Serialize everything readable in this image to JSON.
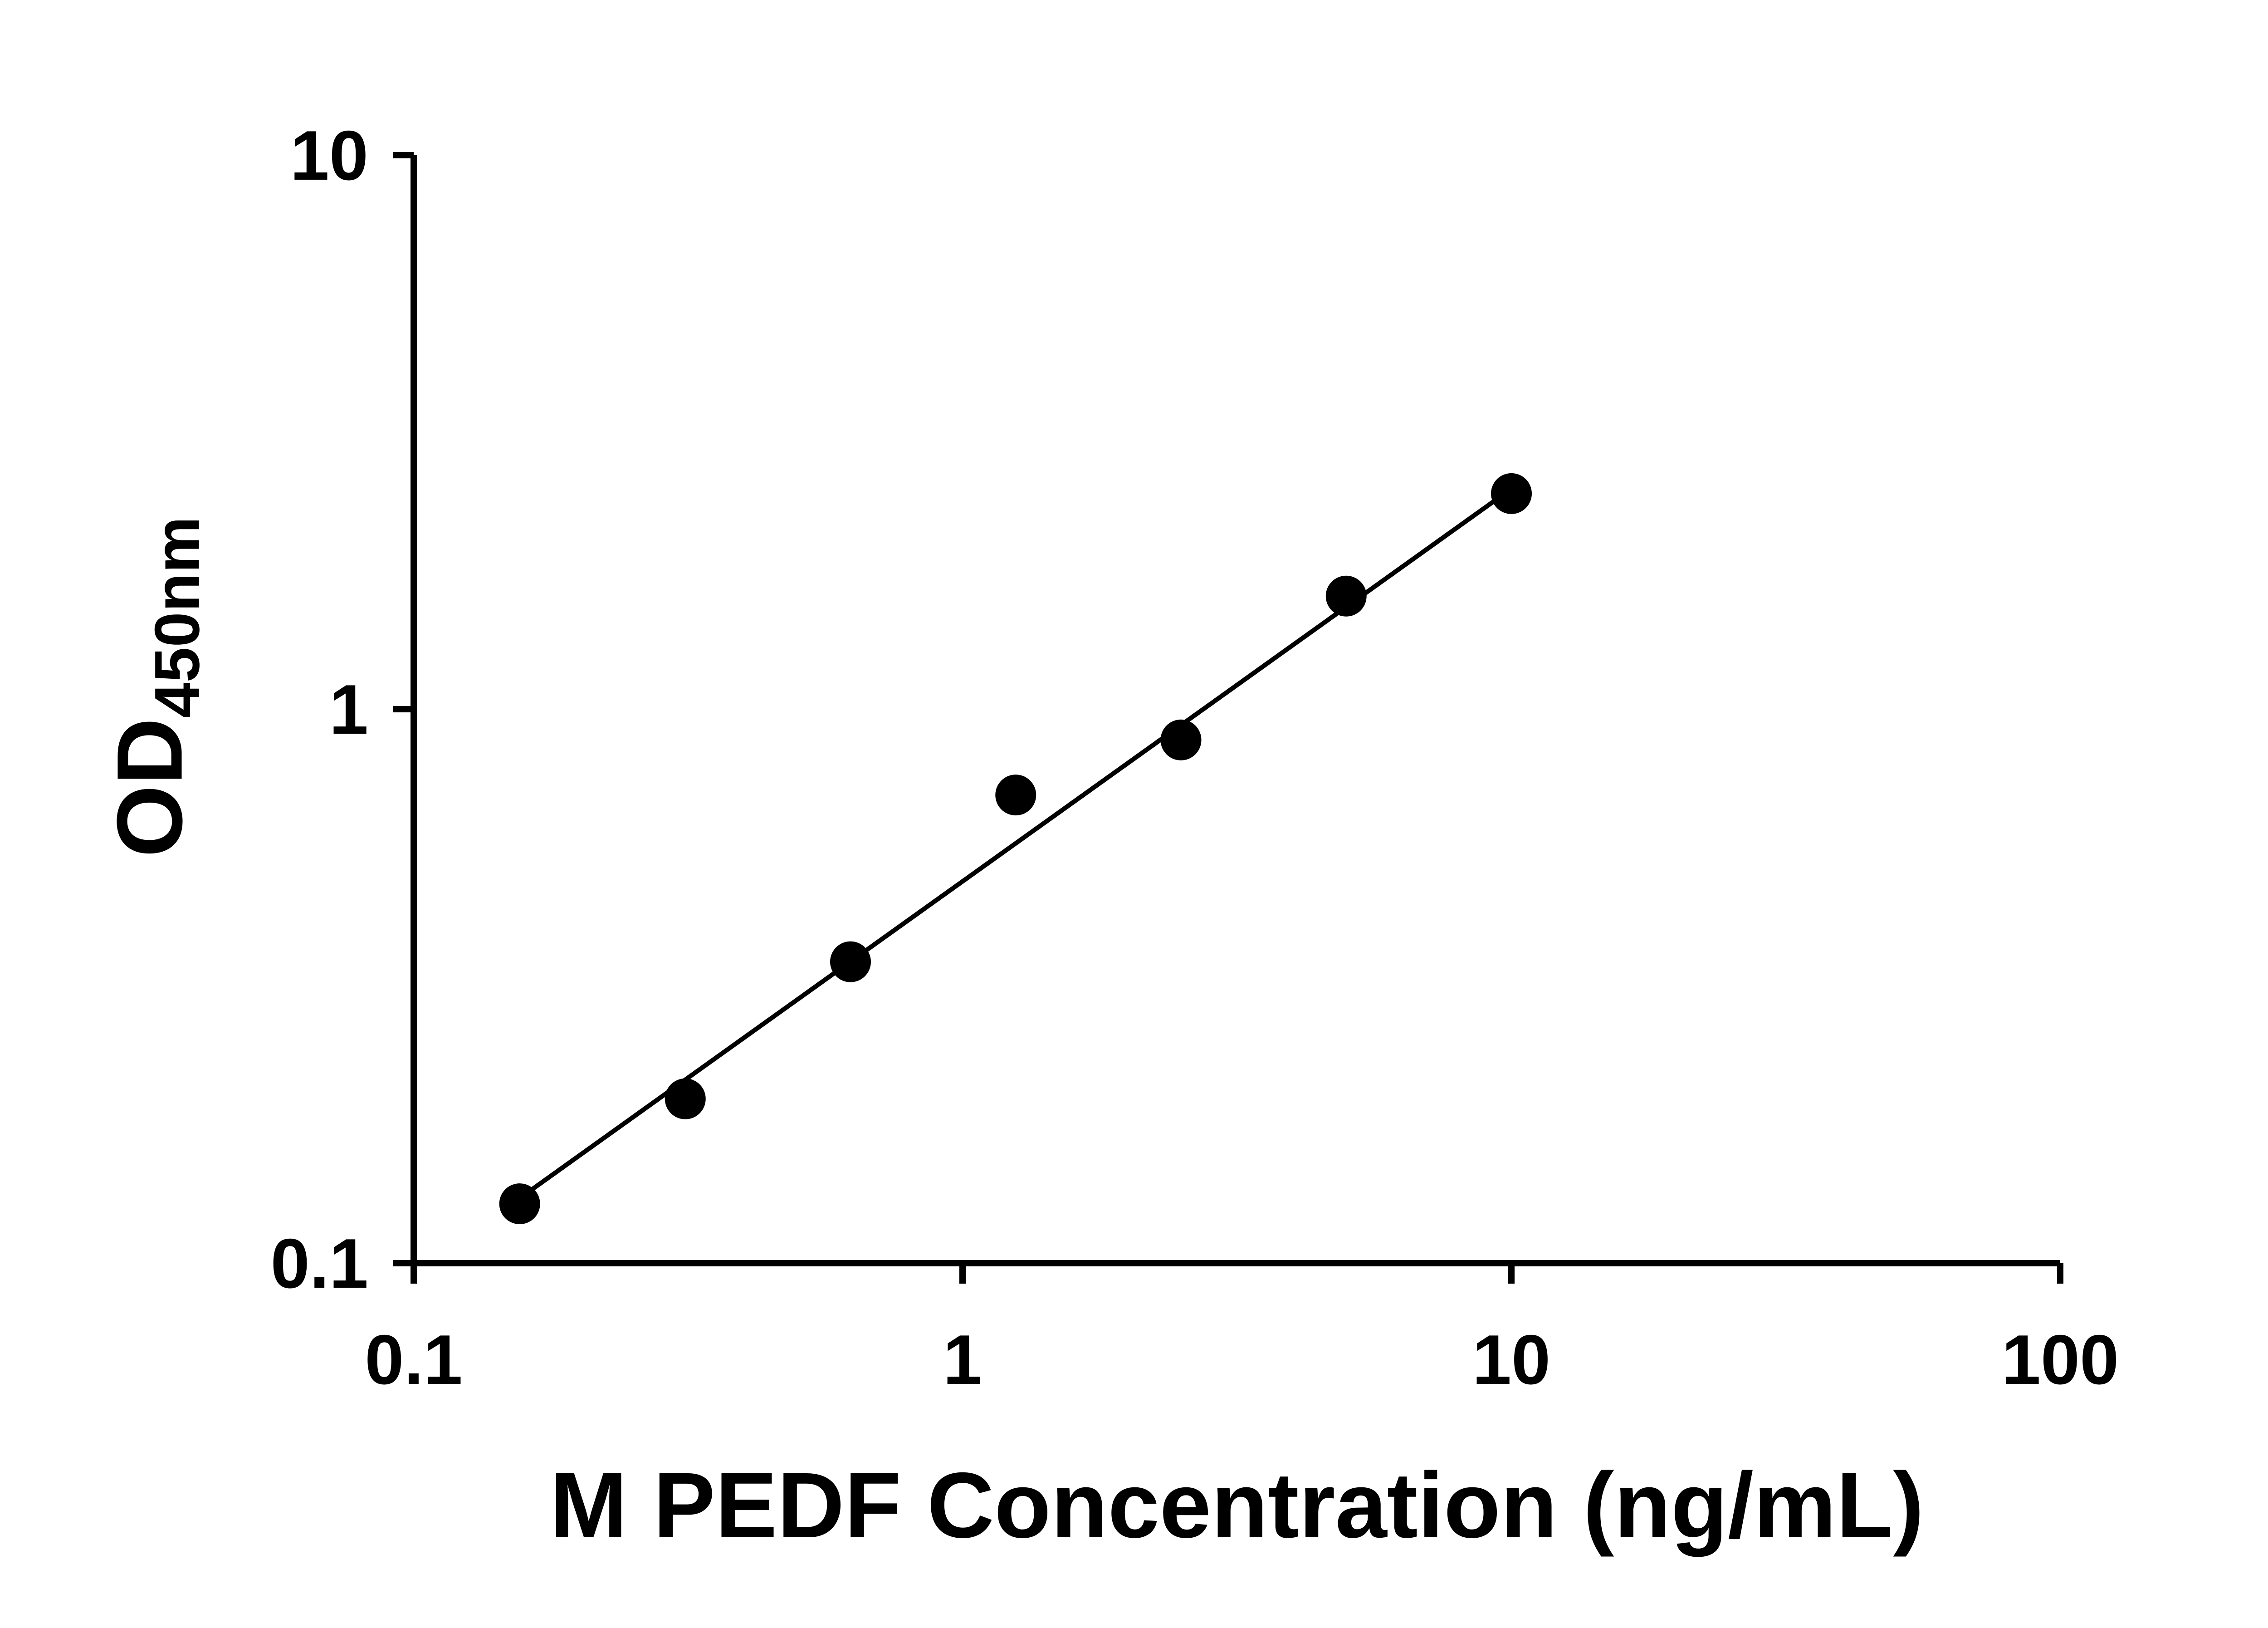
{
  "figure": {
    "background_color": "#ffffff"
  },
  "chart_data": {
    "type": "scatter",
    "title": "",
    "xlabel": "M PEDF Concentration (ng/mL)",
    "ylabel_main": "OD",
    "ylabel_sub": "450nm",
    "x_scale": "log",
    "y_scale": "log",
    "xlim": [
      0.1,
      100
    ],
    "ylim": [
      0.1,
      10
    ],
    "grid": false,
    "legend": false,
    "axis_color": "#000000",
    "marker_color": "#000000",
    "trend_color": "#000000",
    "x_ticks": [
      {
        "value": 0.1,
        "label": "0.1"
      },
      {
        "value": 1,
        "label": "1"
      },
      {
        "value": 10,
        "label": "10"
      },
      {
        "value": 100,
        "label": "100"
      }
    ],
    "y_ticks": [
      {
        "value": 0.1,
        "label": "0.1"
      },
      {
        "value": 1,
        "label": "1"
      },
      {
        "value": 10,
        "label": "10"
      }
    ],
    "points": [
      {
        "x": 0.156,
        "y": 0.128
      },
      {
        "x": 0.3125,
        "y": 0.198
      },
      {
        "x": 0.625,
        "y": 0.35
      },
      {
        "x": 1.25,
        "y": 0.7
      },
      {
        "x": 2.5,
        "y": 0.88
      },
      {
        "x": 5,
        "y": 1.6
      },
      {
        "x": 10,
        "y": 2.45
      }
    ],
    "trendline": {
      "x1": 0.156,
      "y1": 0.131,
      "x2": 10,
      "y2": 2.5
    }
  }
}
